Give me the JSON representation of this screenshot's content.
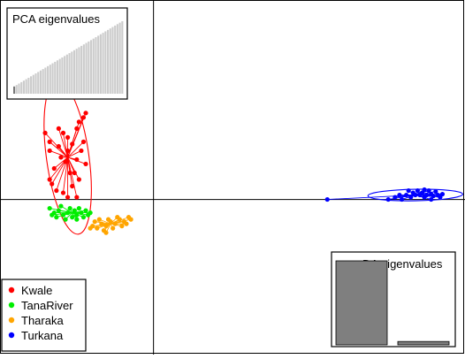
{
  "chart_data": {
    "type": "scatter",
    "title": "",
    "xlabel": "",
    "ylabel": "",
    "grid": false,
    "axes_crosshair": true,
    "xlim": [
      -3.4,
      6.9
    ],
    "ylim": [
      -3.5,
      4.5
    ],
    "legend_position": "bottom-left",
    "series": [
      {
        "name": "Kwale",
        "color": "#ff0000",
        "centroid": [
          -1.9,
          0.95
        ],
        "ellipse": {
          "rx": 0.47,
          "ry": 1.75,
          "rotation_deg": -8
        },
        "points": [
          [
            -2.4,
            1.5
          ],
          [
            -2.3,
            1.3
          ],
          [
            -2.1,
            1.6
          ],
          [
            -1.9,
            1.4
          ],
          [
            -1.7,
            1.6
          ],
          [
            -1.5,
            1.95
          ],
          [
            -1.55,
            1.85
          ],
          [
            -1.65,
            1.75
          ],
          [
            -1.9,
            1.1
          ],
          [
            -2.05,
            0.95
          ],
          [
            -2.2,
            0.7
          ],
          [
            -2.3,
            0.45
          ],
          [
            -2.15,
            0.2
          ],
          [
            -2.0,
            0.15
          ],
          [
            -1.8,
            0.3
          ],
          [
            -1.75,
            0.6
          ],
          [
            -1.7,
            0.9
          ],
          [
            -1.6,
            1.1
          ],
          [
            -1.5,
            0.8
          ],
          [
            -1.65,
            0.45
          ],
          [
            -1.85,
            0.6
          ],
          [
            -1.95,
            0.85
          ],
          [
            -2.3,
            1.1
          ],
          [
            -1.8,
            1.25
          ],
          [
            -1.9,
            0.05
          ],
          [
            -2.25,
            0.35
          ],
          [
            -1.55,
            1.3
          ],
          [
            -2.1,
            1.2
          ],
          [
            -1.7,
            0.05
          ],
          [
            -2.0,
            1.5
          ]
        ]
      },
      {
        "name": "TanaRiver",
        "color": "#00ee00",
        "centroid": [
          -1.8,
          -0.3
        ],
        "points": [
          [
            -2.3,
            -0.2
          ],
          [
            -2.2,
            -0.3
          ],
          [
            -2.1,
            -0.25
          ],
          [
            -2.0,
            -0.35
          ],
          [
            -1.9,
            -0.3
          ],
          [
            -1.8,
            -0.4
          ],
          [
            -1.7,
            -0.35
          ],
          [
            -1.6,
            -0.3
          ],
          [
            -1.5,
            -0.25
          ],
          [
            -1.45,
            -0.35
          ],
          [
            -2.25,
            -0.35
          ],
          [
            -2.05,
            -0.15
          ],
          [
            -1.85,
            -0.2
          ],
          [
            -1.65,
            -0.2
          ],
          [
            -1.55,
            -0.4
          ],
          [
            -1.95,
            -0.45
          ],
          [
            -1.75,
            -0.25
          ],
          [
            -2.15,
            -0.4
          ],
          [
            -1.4,
            -0.3
          ],
          [
            -1.7,
            -0.45
          ]
        ]
      },
      {
        "name": "Tharaka",
        "color": "#ffa500",
        "centroid": [
          -0.95,
          -0.55
        ],
        "points": [
          [
            -1.35,
            -0.6
          ],
          [
            -1.25,
            -0.65
          ],
          [
            -1.15,
            -0.55
          ],
          [
            -1.05,
            -0.6
          ],
          [
            -0.95,
            -0.5
          ],
          [
            -0.85,
            -0.55
          ],
          [
            -0.75,
            -0.45
          ],
          [
            -0.65,
            -0.5
          ],
          [
            -0.55,
            -0.4
          ],
          [
            -0.5,
            -0.45
          ],
          [
            -1.3,
            -0.5
          ],
          [
            -1.1,
            -0.7
          ],
          [
            -0.9,
            -0.65
          ],
          [
            -0.7,
            -0.6
          ],
          [
            -1.2,
            -0.45
          ],
          [
            -1.0,
            -0.45
          ],
          [
            -0.8,
            -0.4
          ],
          [
            -0.6,
            -0.55
          ],
          [
            -1.4,
            -0.65
          ],
          [
            -1.05,
            -0.75
          ]
        ]
      },
      {
        "name": "Turkana",
        "color": "#0000ff",
        "centroid": [
          5.8,
          0.1
        ],
        "ellipse": {
          "rx": 1.05,
          "ry": 0.13,
          "rotation_deg": -1
        },
        "points": [
          [
            3.85,
            0.0
          ],
          [
            5.2,
            0.0
          ],
          [
            5.35,
            0.05
          ],
          [
            5.5,
            0.0
          ],
          [
            5.6,
            0.1
          ],
          [
            5.7,
            0.05
          ],
          [
            5.75,
            0.15
          ],
          [
            5.8,
            0.1
          ],
          [
            5.85,
            0.2
          ],
          [
            5.9,
            0.1
          ],
          [
            5.95,
            0.15
          ],
          [
            6.0,
            0.05
          ],
          [
            6.05,
            0.1
          ],
          [
            6.1,
            0.2
          ],
          [
            6.15,
            0.12
          ],
          [
            6.2,
            0.08
          ],
          [
            6.25,
            0.18
          ],
          [
            6.3,
            0.1
          ],
          [
            6.35,
            0.05
          ],
          [
            6.4,
            0.12
          ],
          [
            5.65,
            0.2
          ],
          [
            6.0,
            0.22
          ],
          [
            5.45,
            0.1
          ],
          [
            6.15,
            0.0
          ]
        ]
      }
    ],
    "insets": [
      {
        "title": "PCA eigenvalues",
        "position": "top-left",
        "bar_color": "#cccccc",
        "highlight_color": "#777777",
        "highlight_count": 1,
        "values": [
          10,
          12,
          14,
          16,
          18,
          20,
          22,
          24,
          26,
          28,
          30,
          32,
          34,
          36,
          38,
          40,
          42,
          44,
          46,
          48,
          50,
          52,
          54,
          56,
          58,
          60,
          62,
          64,
          66,
          68,
          70,
          72,
          74,
          76,
          78,
          80,
          82,
          84,
          86,
          88,
          90,
          92,
          94,
          96,
          98,
          100
        ]
      },
      {
        "title": "DA eigenvalues",
        "position": "bottom-right",
        "bar_color": "#7f7f7f",
        "values": [
          100,
          4
        ]
      }
    ]
  }
}
